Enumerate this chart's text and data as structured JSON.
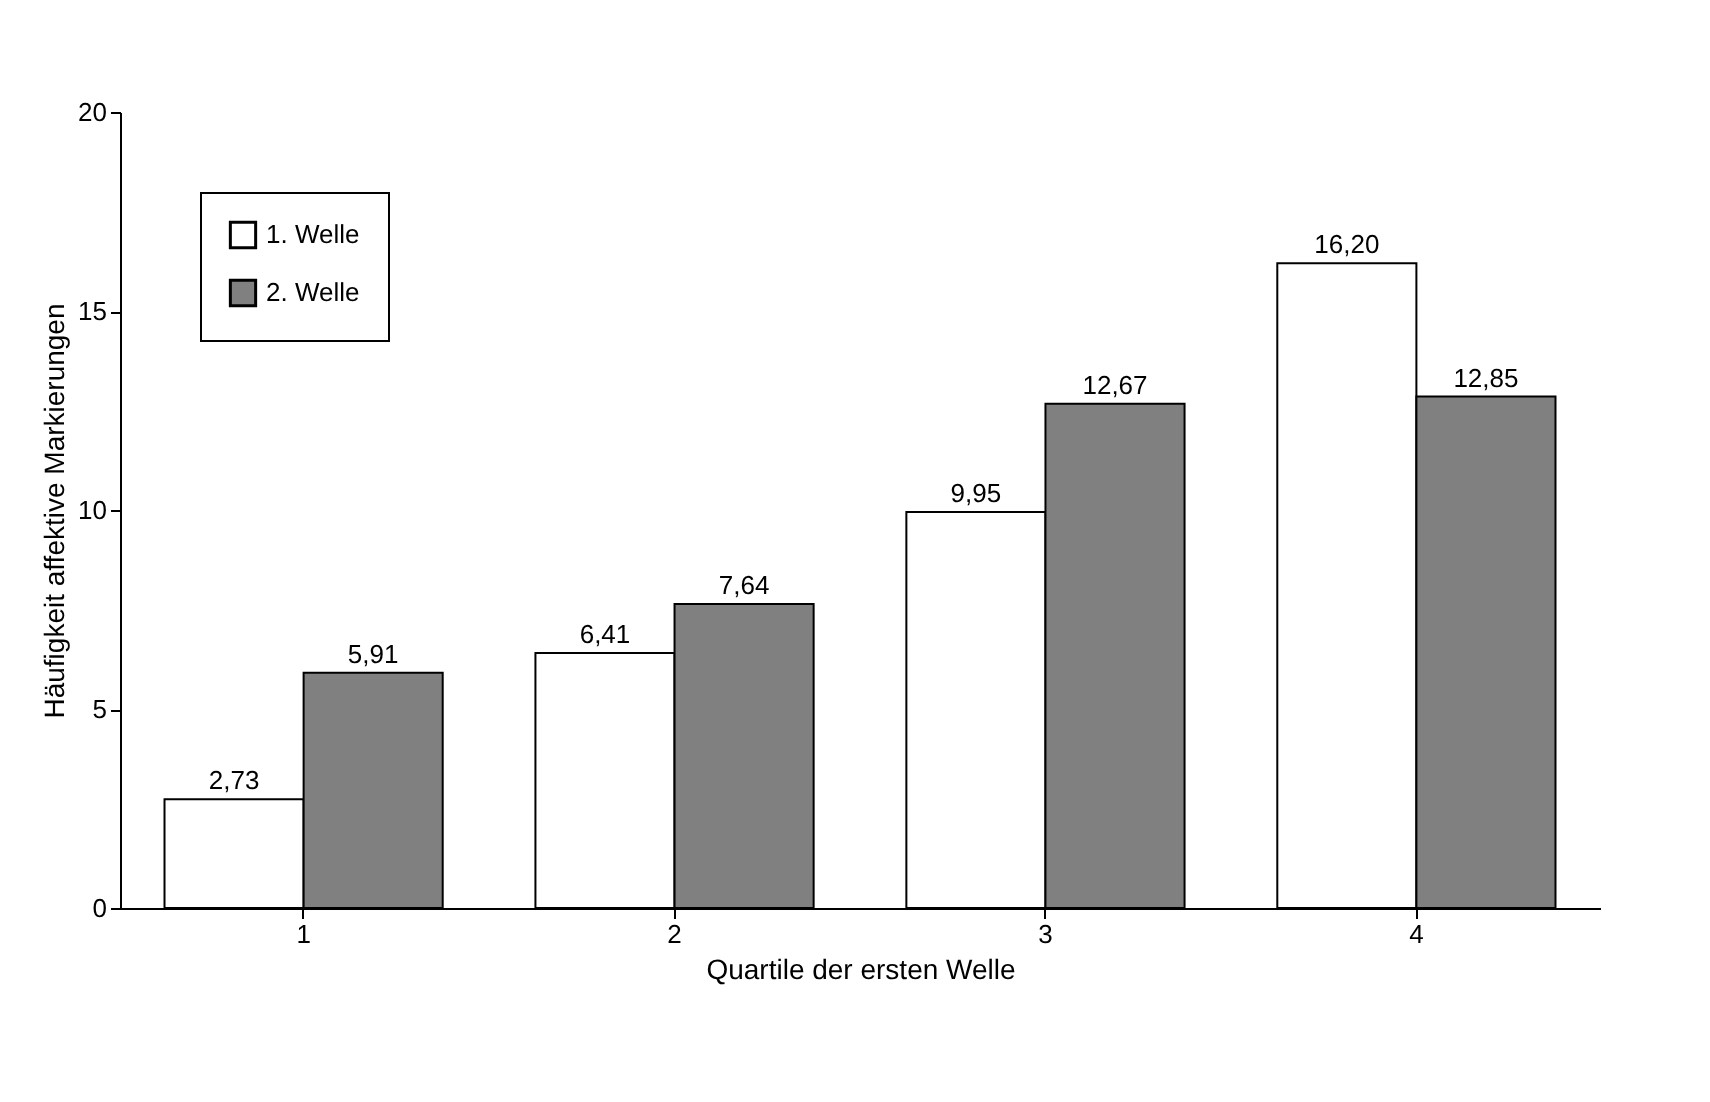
{
  "chart_data": {
    "type": "bar",
    "xlabel": "Quartile der ersten Welle",
    "ylabel": "Häufigkeit affektive Markierungen",
    "categories": [
      "1",
      "2",
      "3",
      "4"
    ],
    "series": [
      {
        "name": "1. Welle",
        "color": "#ffffff",
        "values": [
          2.73,
          6.41,
          9.95,
          16.2
        ],
        "value_labels": [
          "2,73",
          "6,41",
          "9,95",
          "16,20"
        ]
      },
      {
        "name": "2. Welle",
        "color": "#808080",
        "values": [
          5.91,
          7.64,
          12.67,
          12.85
        ],
        "value_labels": [
          "5,91",
          "7,64",
          "12,67",
          "12,85"
        ]
      }
    ],
    "ylim": [
      0,
      20
    ],
    "yticks": [
      0,
      5,
      10,
      15,
      20
    ],
    "grid": false,
    "legend": "top left"
  }
}
